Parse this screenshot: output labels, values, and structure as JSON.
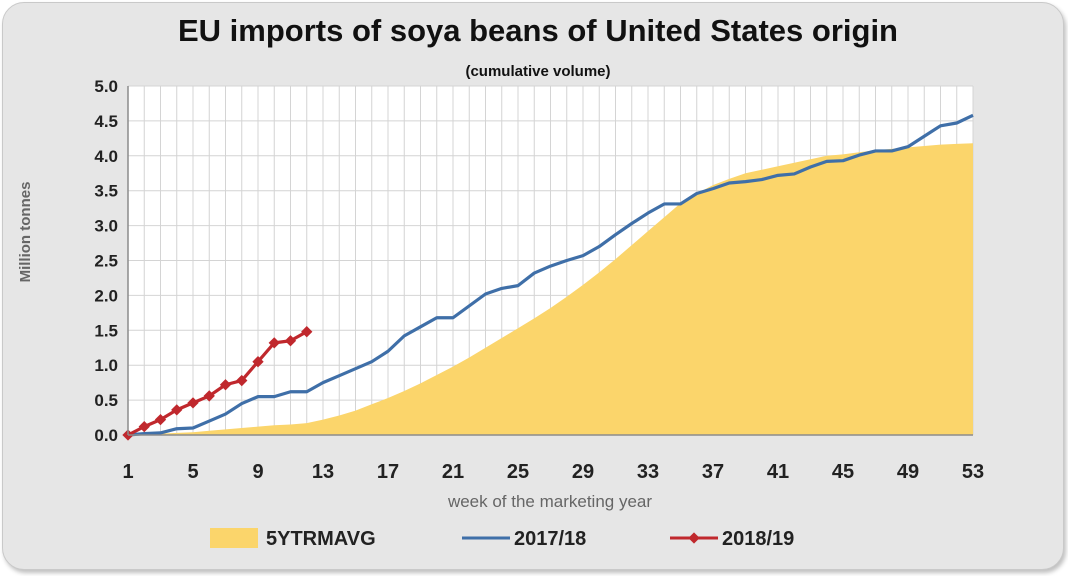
{
  "chart_data": {
    "type": "area",
    "title": "EU imports of soya beans of United States origin",
    "subtitle": "(cumulative volume)",
    "xlabel": "week of the marketing year",
    "ylabel": "Million  tonnes",
    "xlim": [
      1,
      53
    ],
    "ylim": [
      0,
      5
    ],
    "x_ticks": [
      1,
      5,
      9,
      13,
      17,
      21,
      25,
      29,
      33,
      37,
      41,
      45,
      49,
      53
    ],
    "x_tick_labels": [
      "1",
      "5",
      "9",
      "13",
      "17",
      "21",
      "25",
      "29",
      "33",
      "37",
      "41",
      "45",
      "49",
      "53"
    ],
    "y_ticks": [
      0.0,
      0.5,
      1.0,
      1.5,
      2.0,
      2.5,
      3.0,
      3.5,
      4.0,
      4.5,
      5.0
    ],
    "y_tick_labels": [
      "0.0",
      "0.5",
      "1.0",
      "1.5",
      "2.0",
      "2.5",
      "3.0",
      "3.5",
      "4.0",
      "4.5",
      "5.0"
    ],
    "grid": true,
    "legend_position": "bottom",
    "series": [
      {
        "name": "5YTRMAVG",
        "type": "area",
        "color": "#fbd56b",
        "x": [
          1,
          2,
          3,
          4,
          5,
          6,
          7,
          8,
          9,
          10,
          11,
          12,
          13,
          14,
          15,
          16,
          17,
          18,
          19,
          20,
          21,
          22,
          23,
          24,
          25,
          26,
          27,
          28,
          29,
          30,
          31,
          32,
          33,
          34,
          35,
          36,
          37,
          38,
          39,
          40,
          41,
          42,
          43,
          44,
          45,
          46,
          47,
          48,
          49,
          50,
          51,
          52,
          53
        ],
        "values": [
          0.0,
          0.01,
          0.02,
          0.03,
          0.04,
          0.06,
          0.08,
          0.1,
          0.12,
          0.14,
          0.15,
          0.17,
          0.22,
          0.28,
          0.35,
          0.44,
          0.53,
          0.63,
          0.74,
          0.86,
          0.98,
          1.11,
          1.25,
          1.39,
          1.53,
          1.67,
          1.82,
          1.98,
          2.15,
          2.33,
          2.52,
          2.72,
          2.92,
          3.12,
          3.32,
          3.46,
          3.58,
          3.67,
          3.75,
          3.8,
          3.85,
          3.9,
          3.95,
          4.0,
          4.02,
          4.05,
          4.08,
          4.1,
          4.12,
          4.14,
          4.16,
          4.17,
          4.18
        ]
      },
      {
        "name": "2017/18",
        "type": "line",
        "color": "#3f6fa8",
        "x": [
          1,
          2,
          3,
          4,
          5,
          6,
          7,
          8,
          9,
          10,
          11,
          12,
          13,
          14,
          15,
          16,
          17,
          18,
          19,
          20,
          21,
          22,
          23,
          24,
          25,
          26,
          27,
          28,
          29,
          30,
          31,
          32,
          33,
          34,
          35,
          36,
          37,
          38,
          39,
          40,
          41,
          42,
          43,
          44,
          45,
          46,
          47,
          48,
          49,
          50,
          51,
          52,
          53
        ],
        "values": [
          0.0,
          0.02,
          0.03,
          0.09,
          0.1,
          0.2,
          0.3,
          0.45,
          0.55,
          0.55,
          0.62,
          0.62,
          0.75,
          0.85,
          0.95,
          1.05,
          1.2,
          1.42,
          1.55,
          1.68,
          1.68,
          1.85,
          2.02,
          2.1,
          2.14,
          2.32,
          2.42,
          2.5,
          2.57,
          2.7,
          2.87,
          3.03,
          3.18,
          3.31,
          3.31,
          3.46,
          3.53,
          3.61,
          3.63,
          3.66,
          3.72,
          3.74,
          3.84,
          3.92,
          3.93,
          4.01,
          4.07,
          4.07,
          4.13,
          4.28,
          4.43,
          4.47,
          4.58
        ]
      },
      {
        "name": "2018/19",
        "type": "line-marker",
        "color": "#c0282d",
        "x": [
          1,
          2,
          3,
          4,
          5,
          6,
          7,
          8,
          9,
          10,
          11,
          12
        ],
        "values": [
          0.0,
          0.12,
          0.22,
          0.36,
          0.46,
          0.56,
          0.72,
          0.78,
          1.05,
          1.32,
          1.35,
          1.48
        ]
      }
    ]
  }
}
